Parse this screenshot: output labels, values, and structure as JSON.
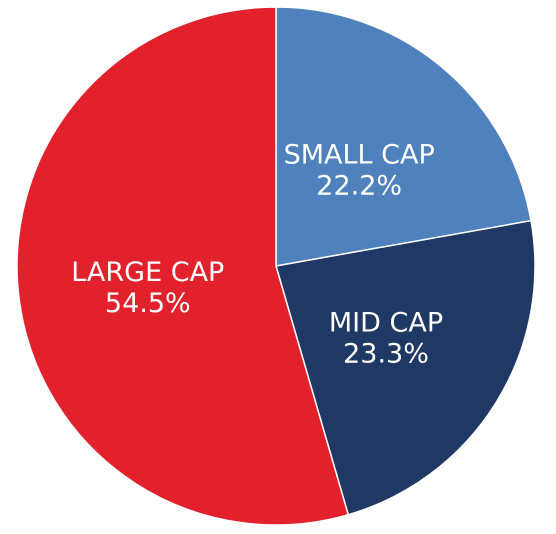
{
  "chart_data": {
    "type": "pie",
    "title": "",
    "slices": [
      {
        "label": "SMALL CAP",
        "value": 22.2,
        "value_label": "22.2%",
        "color": "#4f81bd"
      },
      {
        "label": "MID CAP",
        "value": 23.3,
        "value_label": "23.3%",
        "color": "#1f3864"
      },
      {
        "label": "LARGE CAP",
        "value": 54.5,
        "value_label": "54.5%",
        "color": "#e3212d"
      }
    ],
    "start_angle": "12 o'clock",
    "direction": "clockwise",
    "legend": "none",
    "labels_inside_slices": true
  }
}
